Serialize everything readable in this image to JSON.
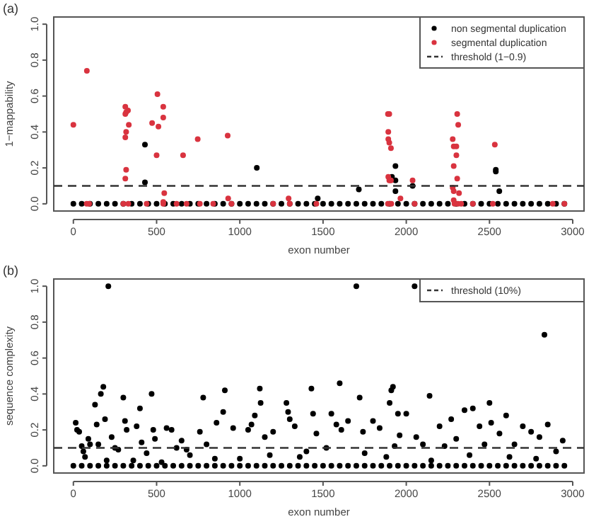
{
  "chart_data": [
    {
      "type": "scatter",
      "title": "(a)",
      "xlabel": "exon number",
      "ylabel": "1−mappability",
      "xlim": [
        -118,
        3068
      ],
      "ylim": [
        -0.04,
        1.04
      ],
      "xticks": [
        0,
        500,
        1000,
        1500,
        2000,
        2500,
        3000
      ],
      "yticks": [
        {
          "value": 0,
          "label": "0.0"
        },
        {
          "value": 0.2,
          "label": "0.2"
        },
        {
          "value": 0.4,
          "label": "0.4"
        },
        {
          "value": 0.6,
          "label": "0.6"
        },
        {
          "value": 0.8,
          "label": "0.8"
        },
        {
          "value": 1,
          "label": "1.0"
        }
      ],
      "marker": "circle",
      "grid": false,
      "legend": "top right",
      "series": [
        {
          "name": "non segmental duplication",
          "color": "#000000",
          "x": [
            0,
            50,
            100,
            150,
            200,
            250,
            300,
            350,
            400,
            450,
            500,
            550,
            600,
            650,
            700,
            750,
            800,
            850,
            900,
            950,
            1000,
            1050,
            1100,
            1150,
            1200,
            1250,
            1300,
            1350,
            1400,
            1450,
            1500,
            1550,
            1600,
            1650,
            1700,
            1750,
            1800,
            1850,
            1900,
            1950,
            2000,
            2050,
            2100,
            2150,
            2200,
            2250,
            2300,
            2350,
            2400,
            2450,
            2500,
            2550,
            2600,
            2650,
            2700,
            2750,
            2800,
            2850,
            2900,
            2950,
            430,
            430,
            1102,
            1468,
            1715,
            1935,
            1914,
            1935,
            1935,
            2038,
            2538,
            2538,
            2559
          ],
          "values": [
            0,
            0,
            0,
            0,
            0,
            0,
            0,
            0,
            0,
            0,
            0,
            0,
            0,
            0,
            0,
            0,
            0,
            0,
            0,
            0,
            0,
            0,
            0,
            0,
            0,
            0,
            0,
            0,
            0,
            0,
            0,
            0,
            0,
            0,
            0,
            0,
            0,
            0,
            0,
            0,
            0,
            0,
            0,
            0,
            0,
            0,
            0,
            0,
            0,
            0,
            0,
            0,
            0,
            0,
            0,
            0,
            0,
            0,
            0,
            0,
            0.33,
            0.12,
            0.2,
            0.03,
            0.08,
            0.21,
            0.15,
            0.13,
            0.07,
            0.1,
            0.19,
            0.18,
            0.07
          ]
        },
        {
          "name": "segmental duplication",
          "color": "#d9333f",
          "x": [
            81,
            0,
            312,
            317,
            312,
            328,
            333,
            317,
            312,
            317,
            312,
            473,
            505,
            511,
            500,
            540,
            540,
            546,
            540,
            659,
            747,
            927,
            930,
            1293,
            1890,
            1898,
            1892,
            1892,
            1898,
            1908,
            1892,
            1898,
            1908,
            1965,
            2038,
            2279,
            2285,
            2285,
            2301,
            2301,
            2306,
            2312,
            2306,
            2279,
            2285,
            2317,
            2285,
            2532,
            80,
            95,
            300,
            330,
            440,
            540,
            620,
            680,
            760,
            840,
            950,
            1200,
            1300,
            1460,
            1890,
            1910,
            2050,
            2290,
            2310,
            2330,
            2400,
            2520,
            2880,
            2950
          ],
          "values": [
            0.74,
            0.44,
            0.54,
            0.51,
            0.5,
            0.52,
            0.44,
            0.4,
            0.37,
            0.19,
            0.14,
            0.45,
            0.61,
            0.43,
            0.27,
            0.54,
            0.48,
            0.06,
            0.01,
            0.27,
            0.36,
            0.38,
            0.03,
            0.03,
            0.5,
            0.5,
            0.4,
            0.36,
            0.34,
            0.31,
            0.15,
            0.13,
            0.13,
            0.03,
            0.13,
            0.36,
            0.32,
            0.21,
            0.32,
            0.27,
            0.5,
            0.44,
            0.14,
            0.09,
            0.07,
            0.06,
            0.02,
            0.33,
            0,
            0,
            0,
            0,
            0,
            0,
            0,
            0,
            0,
            0,
            0,
            0,
            0,
            0,
            0,
            0,
            0,
            0,
            0,
            0,
            0,
            0,
            0,
            0
          ]
        }
      ],
      "ref_lines": [
        {
          "axis": "y",
          "value": 0.1,
          "label": "threshold (1−0.9)",
          "line_style": "dashed",
          "color": "#333333"
        }
      ]
    },
    {
      "type": "scatter",
      "title": "(b)",
      "xlabel": "exon number",
      "ylabel": "sequence complexity",
      "xlim": [
        -118,
        3068
      ],
      "ylim": [
        -0.04,
        1.04
      ],
      "xticks": [
        0,
        500,
        1000,
        1500,
        2000,
        2500,
        3000
      ],
      "yticks": [
        {
          "value": 0,
          "label": "0.0"
        },
        {
          "value": 0.2,
          "label": "0.2"
        },
        {
          "value": 0.4,
          "label": "0.4"
        },
        {
          "value": 0.6,
          "label": "0.6"
        },
        {
          "value": 0.8,
          "label": "0.8"
        },
        {
          "value": 1,
          "label": "1.0"
        }
      ],
      "marker": "circle",
      "grid": false,
      "legend": "top right",
      "series": [
        {
          "color": "#000000",
          "x": [
            0,
            50,
            100,
            150,
            200,
            250,
            300,
            350,
            400,
            450,
            500,
            550,
            600,
            650,
            700,
            750,
            800,
            850,
            900,
            950,
            1000,
            1050,
            1100,
            1150,
            1200,
            1250,
            1300,
            1350,
            1400,
            1450,
            1500,
            1550,
            1600,
            1650,
            1700,
            1750,
            1800,
            1850,
            1900,
            1950,
            2000,
            2050,
            2100,
            2150,
            2200,
            2250,
            2300,
            2350,
            2400,
            2450,
            2500,
            2550,
            2600,
            2650,
            2700,
            2750,
            2800,
            2850,
            2900,
            2950,
            14,
            22,
            35,
            50,
            60,
            90,
            100,
            130,
            140,
            150,
            165,
            180,
            190,
            210,
            230,
            250,
            300,
            310,
            320,
            360,
            380,
            400,
            410,
            470,
            480,
            490,
            560,
            590,
            620,
            650,
            700,
            760,
            780,
            800,
            860,
            900,
            910,
            960,
            1000,
            1050,
            1070,
            1090,
            1120,
            1125,
            1150,
            1200,
            1280,
            1290,
            1300,
            1330,
            1360,
            1430,
            1440,
            1460,
            1520,
            1550,
            1580,
            1600,
            1610,
            1650,
            1700,
            1720,
            1740,
            1800,
            1840,
            1900,
            1910,
            1920,
            1930,
            1950,
            1960,
            2000,
            2050,
            2060,
            2100,
            2140,
            2200,
            2230,
            2270,
            2300,
            2350,
            2400,
            2440,
            2470,
            2500,
            2510,
            2560,
            2600,
            2650,
            2700,
            2750,
            2800,
            2830,
            2850,
            2900,
            2940,
            70,
            200,
            270,
            440,
            530,
            680,
            850,
            1180,
            1400,
            1750,
            1880,
            2150,
            2380,
            2620,
            2780
          ],
          "values": [
            0,
            0,
            0,
            0,
            0,
            0,
            0,
            0,
            0,
            0,
            0,
            0,
            0,
            0,
            0,
            0,
            0,
            0,
            0,
            0,
            0,
            0,
            0,
            0,
            0,
            0,
            0,
            0,
            0,
            0,
            0,
            0,
            0,
            0,
            0,
            0,
            0,
            0,
            0,
            0,
            0,
            0,
            0,
            0,
            0,
            0,
            0,
            0,
            0,
            0,
            0,
            0,
            0,
            0,
            0,
            0,
            0,
            0,
            0,
            0,
            0.24,
            0.2,
            0.19,
            0.11,
            0.08,
            0.15,
            0.12,
            0.34,
            0.23,
            0.12,
            0.4,
            0.44,
            0.26,
            1,
            0.16,
            0.1,
            0.38,
            0.25,
            0.2,
            0.03,
            0.22,
            0.32,
            0.13,
            0.4,
            0.2,
            0.15,
            0.21,
            0.2,
            0.1,
            0.14,
            0.06,
            0.19,
            0.38,
            0.12,
            0.24,
            0.3,
            0.42,
            0.21,
            0.04,
            0.2,
            0.23,
            0.28,
            0.43,
            0.35,
            0.16,
            0.19,
            0.35,
            0.3,
            0.26,
            0.22,
            0.05,
            0.43,
            0.29,
            0.18,
            0.1,
            0.29,
            0.23,
            0.46,
            0.2,
            0.25,
            1,
            0.38,
            0.19,
            0.25,
            0.21,
            0.35,
            0.42,
            0.44,
            0.11,
            0.29,
            0.17,
            0.29,
            1,
            0.16,
            0.12,
            0.39,
            0.22,
            0.11,
            0.26,
            0.15,
            0.31,
            0.32,
            0.22,
            0.12,
            0.35,
            0.24,
            0.18,
            0.28,
            0.12,
            0.22,
            0.19,
            0.16,
            0.73,
            0.23,
            0.08,
            0.14,
            0.05,
            0.03,
            0.09,
            0.07,
            0.02,
            0.09,
            0.04,
            0.06,
            0.08,
            0.07,
            0.05,
            0.03,
            0.06,
            0.05,
            0.04
          ]
        }
      ],
      "ref_lines": [
        {
          "axis": "y",
          "value": 0.1,
          "label": "threshold (10%)",
          "line_style": "dashed",
          "color": "#333333"
        }
      ]
    }
  ]
}
